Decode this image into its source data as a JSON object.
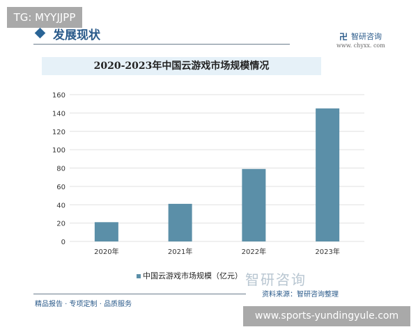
{
  "overlay_top": "TG: MYYJJPP",
  "overlay_bottom": "www.sports-yundingyule.com",
  "section_title": "发展现状",
  "brand": {
    "logo": "智研咨询",
    "name": "智研咨询",
    "url": "www. chyxx. com"
  },
  "footer_left": "精品报告 · 专项定制 · 品质服务",
  "source": "资料来源：智研咨询整理",
  "chart_data": {
    "type": "bar",
    "title": "2020-2023年中国云游戏市场规模情况",
    "categories": [
      "2020年",
      "2021年",
      "2022年",
      "2023年"
    ],
    "series": [
      {
        "name": "中国云游戏市场规模（亿元）",
        "values": [
          21,
          41,
          79,
          145
        ],
        "color": "#5b8fa8"
      }
    ],
    "yticks": [
      "0",
      "20",
      "40",
      "60",
      "80",
      "100",
      "120",
      "140",
      "160"
    ],
    "ylim": [
      0,
      160
    ],
    "grid": true,
    "legend": "bottom"
  }
}
